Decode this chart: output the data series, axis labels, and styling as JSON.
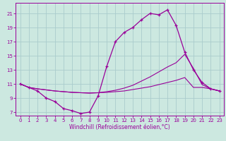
{
  "xlabel": "Windchill (Refroidissement éolien,°C)",
  "bg_color": "#cce8e0",
  "grid_color": "#aacccc",
  "line_color": "#990099",
  "xlim": [
    -0.5,
    23.5
  ],
  "ylim": [
    6.5,
    22.5
  ],
  "xticks": [
    0,
    1,
    2,
    3,
    4,
    5,
    6,
    7,
    8,
    9,
    10,
    11,
    12,
    13,
    14,
    15,
    16,
    17,
    18,
    19,
    20,
    21,
    22,
    23
  ],
  "yticks": [
    7,
    9,
    11,
    13,
    15,
    17,
    19,
    21
  ],
  "line1_x": [
    0,
    1,
    2,
    3,
    4,
    5,
    6,
    7,
    8,
    9,
    10,
    11,
    12,
    13,
    14,
    15,
    16,
    17,
    18,
    19,
    20,
    21,
    22,
    23
  ],
  "line1_y": [
    11.0,
    10.5,
    10.0,
    9.0,
    8.5,
    7.5,
    7.2,
    6.8,
    7.0,
    9.3,
    13.5,
    17.0,
    18.3,
    19.0,
    20.1,
    21.0,
    20.8,
    21.5,
    19.3,
    15.5,
    13.0,
    11.2,
    10.3,
    10.0
  ],
  "line2_x": [
    0,
    1,
    2,
    3,
    4,
    5,
    6,
    7,
    8,
    9,
    10,
    11,
    12,
    13,
    14,
    15,
    16,
    17,
    18,
    19,
    20,
    21,
    22,
    23
  ],
  "line2_y": [
    11.0,
    10.5,
    10.3,
    10.15,
    10.0,
    9.9,
    9.8,
    9.75,
    9.7,
    9.75,
    9.8,
    9.9,
    10.0,
    10.2,
    10.4,
    10.6,
    10.9,
    11.2,
    11.5,
    11.9,
    10.5,
    10.5,
    10.3,
    10.0
  ],
  "line3_x": [
    0,
    1,
    2,
    3,
    4,
    5,
    6,
    7,
    8,
    9,
    10,
    11,
    12,
    13,
    14,
    15,
    16,
    17,
    18,
    19,
    20,
    21,
    22,
    23
  ],
  "line3_y": [
    11.0,
    10.5,
    10.3,
    10.15,
    10.0,
    9.9,
    9.8,
    9.75,
    9.7,
    9.75,
    9.9,
    10.1,
    10.4,
    10.8,
    11.4,
    12.0,
    12.7,
    13.4,
    14.0,
    15.2,
    13.2,
    10.9,
    10.3,
    10.0
  ]
}
